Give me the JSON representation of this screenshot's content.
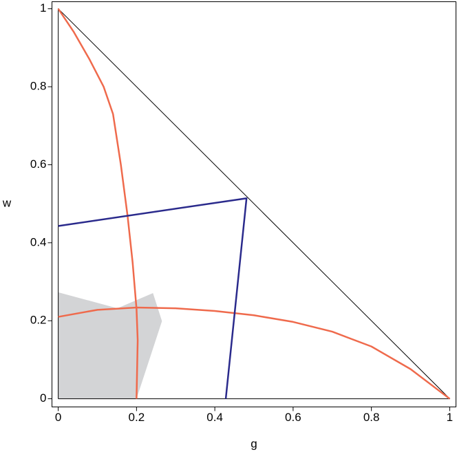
{
  "chart_data": {
    "type": "line",
    "xlabel": "g",
    "ylabel": "w",
    "xlim": [
      -0.016,
      1.016
    ],
    "ylim": [
      -0.021,
      1.018
    ],
    "xticks": [
      0,
      0.2,
      0.4,
      0.6,
      0.8,
      1
    ],
    "yticks": [
      0,
      0.2,
      0.4,
      0.6,
      0.8,
      1
    ],
    "series": [
      {
        "color": "#d3d4d6",
        "fill": true,
        "x": [
          0,
          0.151,
          0.242,
          0.265,
          0.2,
          0
        ],
        "values": [
          0.273,
          0.232,
          0.271,
          0.199,
          0,
          0
        ]
      },
      {
        "color": "#000000",
        "x": [
          0,
          0,
          1,
          0
        ],
        "values": [
          0,
          1,
          0,
          0
        ]
      },
      {
        "color": "#ef6a4c",
        "x": [
          0,
          0.04,
          0.08,
          0.116,
          0.14,
          0.16,
          0.177,
          0.19,
          0.2,
          0.203,
          0.2
        ],
        "values": [
          1,
          0.94,
          0.87,
          0.8,
          0.73,
          0.6,
          0.47,
          0.35,
          0.23,
          0.15,
          0
        ]
      },
      {
        "color": "#ef6a4c",
        "x": [
          0,
          0.1,
          0.2,
          0.3,
          0.4,
          0.5,
          0.6,
          0.7,
          0.8,
          0.9,
          1
        ],
        "values": [
          0.21,
          0.228,
          0.234,
          0.232,
          0.225,
          0.214,
          0.197,
          0.172,
          0.134,
          0.076,
          0
        ]
      },
      {
        "color": "#2a2a8c",
        "x": [
          0,
          0.481,
          0.428
        ],
        "values": [
          0.443,
          0.514,
          0
        ]
      }
    ]
  }
}
